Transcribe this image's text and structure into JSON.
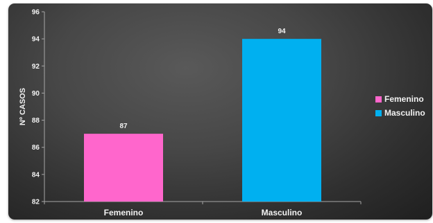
{
  "chart_data": {
    "type": "bar",
    "categories": [
      "Femenino",
      "Masculino"
    ],
    "values": [
      87,
      94
    ],
    "colors": [
      "#ff66cc",
      "#00b0f0"
    ],
    "data_labels": [
      "87",
      "94"
    ],
    "title": "",
    "xlabel": "",
    "ylabel": "Nº CASOS",
    "ylim": [
      82,
      96
    ],
    "yticks": [
      82,
      84,
      86,
      88,
      90,
      92,
      94,
      96
    ],
    "ytick_labels": [
      "82",
      "84",
      "86",
      "88",
      "90",
      "92",
      "94",
      "96"
    ],
    "grid": false,
    "legend": {
      "placement": "right",
      "entries": [
        {
          "label": "Femenino",
          "color": "#ff66cc"
        },
        {
          "label": "Masculino",
          "color": "#00b0f0"
        }
      ]
    },
    "background": "dark-gray-gradient",
    "axis_color": "#a6a6a6"
  }
}
